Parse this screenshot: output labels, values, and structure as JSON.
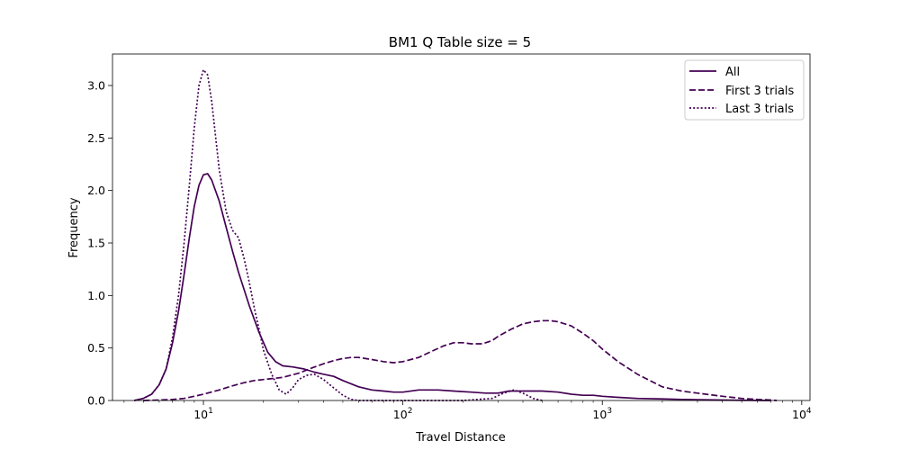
{
  "chart_data": {
    "type": "line",
    "title": "BM1 Q Table size = 5",
    "xlabel": "Travel Distance",
    "ylabel": "Frequency",
    "xscale": "log",
    "xlim": [
      3.5,
      11000
    ],
    "ylim": [
      0,
      3.3
    ],
    "x_ticks": [
      {
        "value": 10,
        "base": "10",
        "exp": "1"
      },
      {
        "value": 100,
        "base": "10",
        "exp": "2"
      },
      {
        "value": 1000,
        "base": "10",
        "exp": "3"
      },
      {
        "value": 10000,
        "base": "10",
        "exp": "4"
      }
    ],
    "y_ticks": [
      "0.0",
      "0.5",
      "1.0",
      "1.5",
      "2.0",
      "2.5",
      "3.0"
    ],
    "grid": false,
    "legend_position": "top-right",
    "color": "#440154",
    "series": [
      {
        "name": "All",
        "linestyle": "solid",
        "x": [
          4.5,
          5,
          5.5,
          6,
          6.5,
          7,
          7.5,
          8,
          8.5,
          9,
          9.5,
          10,
          10.5,
          11,
          12,
          13,
          14,
          15,
          17,
          19,
          21,
          23,
          25,
          28,
          32,
          36,
          40,
          45,
          50,
          60,
          70,
          80,
          90,
          100,
          120,
          150,
          180,
          220,
          260,
          300,
          340,
          380,
          420,
          500,
          600,
          700,
          800,
          900,
          1000,
          1200,
          1500,
          2000,
          2500,
          3000,
          4000,
          5000,
          6000,
          7000
        ],
        "y": [
          0.0,
          0.02,
          0.06,
          0.15,
          0.3,
          0.55,
          0.85,
          1.2,
          1.55,
          1.85,
          2.05,
          2.15,
          2.16,
          2.1,
          1.9,
          1.65,
          1.42,
          1.22,
          0.9,
          0.65,
          0.46,
          0.37,
          0.33,
          0.32,
          0.3,
          0.27,
          0.25,
          0.23,
          0.19,
          0.13,
          0.1,
          0.09,
          0.08,
          0.08,
          0.1,
          0.1,
          0.09,
          0.08,
          0.07,
          0.07,
          0.09,
          0.09,
          0.09,
          0.09,
          0.08,
          0.06,
          0.05,
          0.05,
          0.04,
          0.03,
          0.02,
          0.015,
          0.01,
          0.008,
          0.004,
          0.002,
          0.001,
          0.0
        ]
      },
      {
        "name": "First 3 trials",
        "linestyle": "dashed",
        "x": [
          5,
          6,
          7,
          8,
          9,
          10,
          12,
          14,
          16,
          18,
          20,
          25,
          30,
          35,
          40,
          45,
          50,
          55,
          60,
          70,
          80,
          90,
          100,
          120,
          140,
          160,
          180,
          200,
          220,
          250,
          280,
          300,
          350,
          400,
          450,
          500,
          550,
          600,
          700,
          800,
          900,
          1000,
          1200,
          1500,
          2000,
          2500,
          3000,
          4000,
          5000,
          6000,
          7000,
          7500
        ],
        "y": [
          0.0,
          0.005,
          0.01,
          0.02,
          0.04,
          0.06,
          0.1,
          0.14,
          0.17,
          0.19,
          0.2,
          0.22,
          0.26,
          0.31,
          0.35,
          0.38,
          0.4,
          0.41,
          0.41,
          0.39,
          0.37,
          0.36,
          0.37,
          0.41,
          0.47,
          0.52,
          0.55,
          0.55,
          0.54,
          0.54,
          0.57,
          0.61,
          0.68,
          0.73,
          0.75,
          0.76,
          0.76,
          0.75,
          0.71,
          0.64,
          0.57,
          0.49,
          0.37,
          0.25,
          0.13,
          0.09,
          0.07,
          0.04,
          0.02,
          0.01,
          0.005,
          0.0
        ]
      },
      {
        "name": "Last 3 trials",
        "linestyle": "dotted",
        "x": [
          4.5,
          5,
          5.5,
          6,
          6.5,
          7,
          7.5,
          8,
          8.5,
          9,
          9.5,
          10,
          10.5,
          11,
          12,
          13,
          14,
          15,
          16,
          17,
          18,
          19,
          20,
          22,
          24,
          26,
          28,
          30,
          33,
          36,
          40,
          45,
          50,
          55,
          60,
          70,
          100,
          200,
          280,
          320,
          360,
          400,
          450,
          500
        ],
        "y": [
          0.0,
          0.02,
          0.06,
          0.15,
          0.3,
          0.6,
          1.0,
          1.5,
          2.05,
          2.6,
          3.0,
          3.15,
          3.1,
          2.85,
          2.2,
          1.8,
          1.62,
          1.55,
          1.35,
          1.12,
          0.88,
          0.68,
          0.48,
          0.25,
          0.1,
          0.06,
          0.12,
          0.2,
          0.24,
          0.25,
          0.2,
          0.12,
          0.05,
          0.01,
          0.0,
          0.0,
          0.0,
          0.0,
          0.02,
          0.07,
          0.1,
          0.07,
          0.02,
          0.0
        ]
      }
    ]
  }
}
